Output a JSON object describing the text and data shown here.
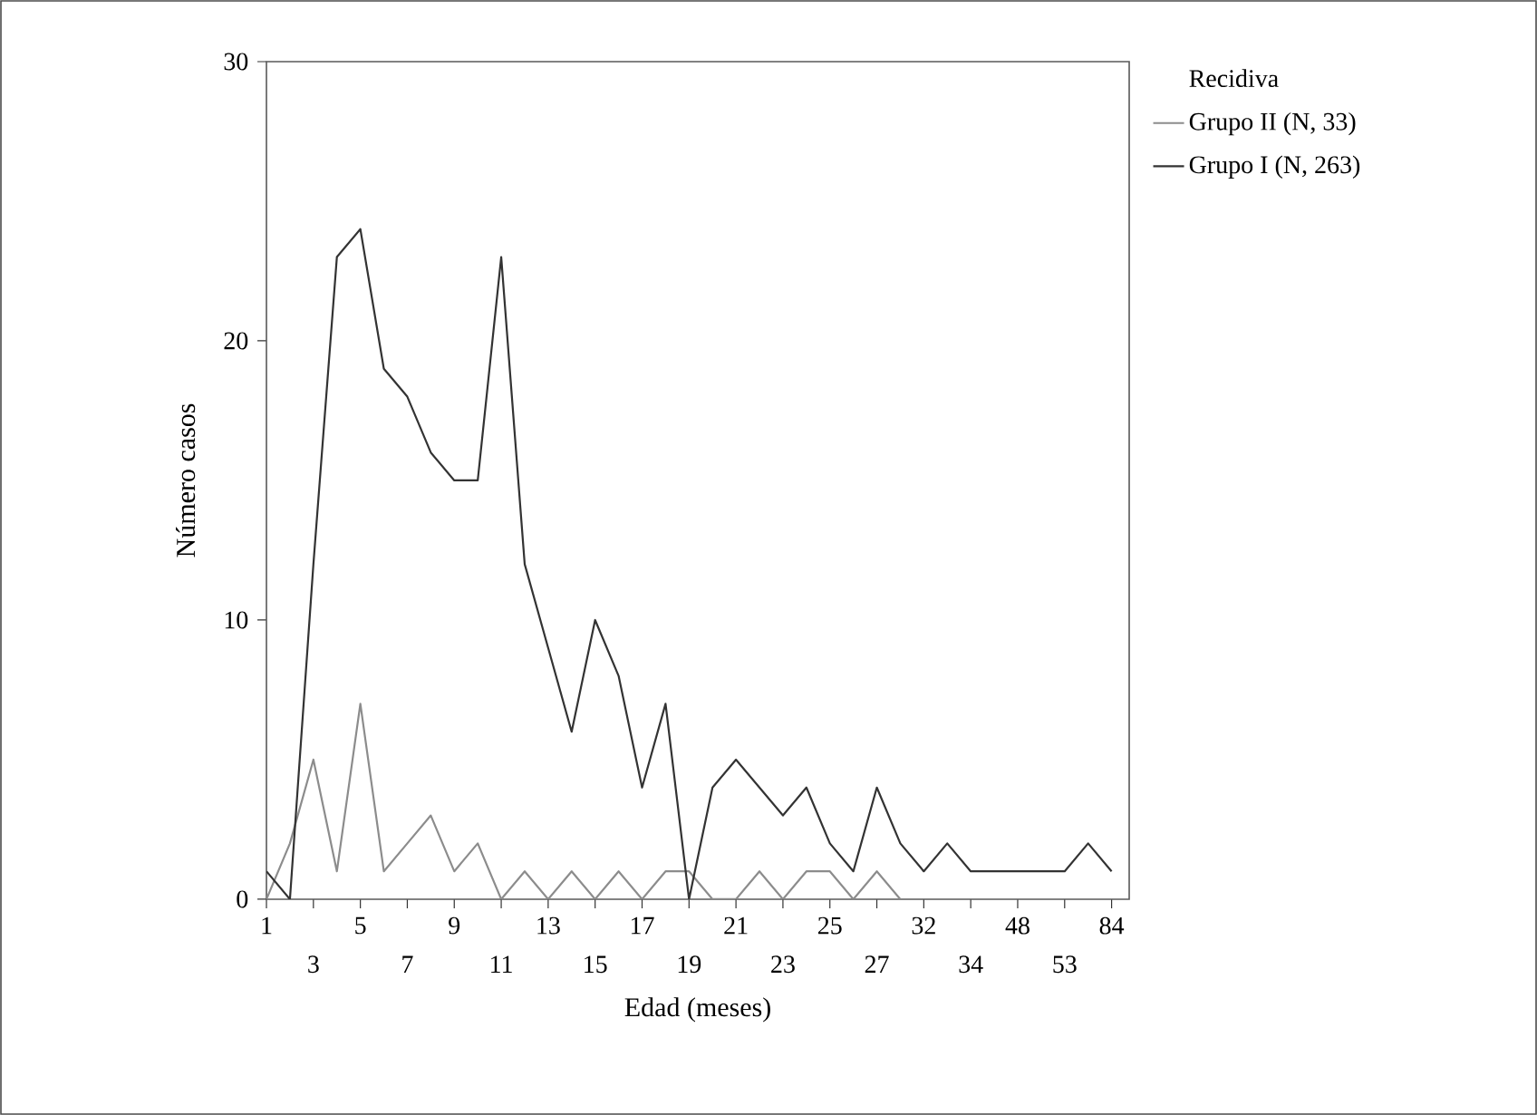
{
  "chart_data": {
    "type": "line",
    "xlabel": "Edad (meses)",
    "ylabel": "Número casos",
    "legend_title": "Recidiva",
    "legend": "top right",
    "grid": false,
    "marker": "none",
    "line_style": "solid",
    "categories": [
      "1",
      null,
      "3",
      null,
      "5",
      null,
      "7",
      null,
      "9",
      null,
      "11",
      null,
      "13",
      null,
      "15",
      null,
      "17",
      null,
      "19",
      null,
      "21",
      null,
      "23",
      null,
      "25",
      null,
      "27",
      null,
      "32",
      null,
      "34",
      null,
      "48",
      null,
      "53",
      null,
      "84"
    ],
    "ylim": [
      0,
      30
    ],
    "yticks": [
      0,
      10,
      20,
      30
    ],
    "series": [
      {
        "name": "Grupo II (N, 33)",
        "color": "#8c8c8c",
        "values": [
          0,
          2,
          5,
          1,
          7,
          1,
          2,
          3,
          1,
          2,
          0,
          1,
          0,
          1,
          0,
          1,
          0,
          1,
          1,
          0,
          0,
          1,
          0,
          1,
          1,
          0,
          1,
          0,
          null,
          null,
          null,
          null,
          null,
          null,
          null,
          null,
          null
        ]
      },
      {
        "name": "Grupo I (N, 263)",
        "color": "#333333",
        "values": [
          1,
          0,
          12,
          23,
          24,
          19,
          18,
          16,
          15,
          15,
          23,
          12,
          9,
          6,
          10,
          8,
          4,
          7,
          0,
          4,
          5,
          4,
          3,
          4,
          2,
          1,
          4,
          2,
          1,
          2,
          1,
          1,
          1,
          1,
          1,
          2,
          1
        ]
      }
    ]
  }
}
